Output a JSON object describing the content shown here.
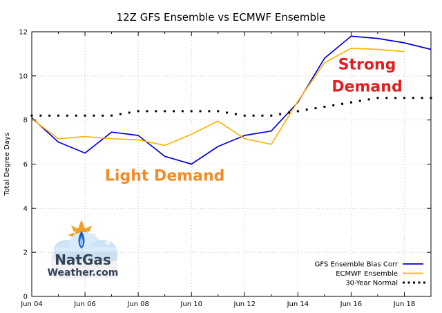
{
  "chart_data": {
    "type": "line",
    "title": "12Z GFS Ensemble vs ECMWF Ensemble",
    "xlabel": "",
    "ylabel": "Total Degree Days",
    "ylim": [
      0,
      12
    ],
    "yticks": [
      0,
      2,
      4,
      6,
      8,
      10,
      12
    ],
    "xlim": [
      0,
      15
    ],
    "xticks": [
      {
        "x": 0,
        "label": "Jun 04"
      },
      {
        "x": 2,
        "label": "Jun 06"
      },
      {
        "x": 4,
        "label": "Jun 08"
      },
      {
        "x": 6,
        "label": "Jun 10"
      },
      {
        "x": 8,
        "label": "Jun 12"
      },
      {
        "x": 10,
        "label": "Jun 14"
      },
      {
        "x": 12,
        "label": "Jun 16"
      },
      {
        "x": 14,
        "label": "Jun 18"
      }
    ],
    "grid": true,
    "legend_position": "bottom-right",
    "series": [
      {
        "name": "GFS Ensemble Bias Corr",
        "color": "#0000dd",
        "style": "solid",
        "x": [
          0,
          1,
          2,
          3,
          4,
          5,
          6,
          7,
          8,
          9,
          10,
          11,
          12,
          13,
          14,
          15
        ],
        "values": [
          8.1,
          7.0,
          6.5,
          7.45,
          7.3,
          6.35,
          6.0,
          6.8,
          7.3,
          7.5,
          8.8,
          10.8,
          11.8,
          11.7,
          11.5,
          11.2
        ]
      },
      {
        "name": "ECMWF Ensemble",
        "color": "#ffb300",
        "style": "solid",
        "x": [
          0,
          1,
          2,
          3,
          4,
          5,
          6,
          7,
          8,
          9,
          10,
          11,
          12,
          13,
          14
        ],
        "values": [
          8.05,
          7.15,
          7.25,
          7.15,
          7.1,
          6.85,
          7.35,
          7.95,
          7.15,
          6.9,
          8.85,
          10.6,
          11.25,
          11.2,
          11.1
        ]
      },
      {
        "name": "30-Year Normal",
        "color": "#000000",
        "style": "dotted",
        "x": [
          0,
          1,
          2,
          3,
          4,
          5,
          6,
          7,
          8,
          9,
          10,
          11,
          12,
          13,
          14,
          15
        ],
        "values": [
          8.2,
          8.2,
          8.2,
          8.2,
          8.4,
          8.4,
          8.4,
          8.4,
          8.2,
          8.2,
          8.4,
          8.6,
          8.8,
          9.0,
          9.0,
          9.0
        ]
      }
    ],
    "annotations": [
      {
        "text": "Light Demand",
        "color": "#f28c28",
        "x": 5.0,
        "y": 5.25,
        "anchor": "middle"
      },
      {
        "text": "Strong Demand",
        "color": "#e02020",
        "line1": "Strong",
        "line2": "Demand",
        "x": 12.6,
        "y": 10.3,
        "anchor": "middle"
      }
    ]
  },
  "logo": {
    "line1": "NatGas",
    "line2": "Weather.com"
  }
}
